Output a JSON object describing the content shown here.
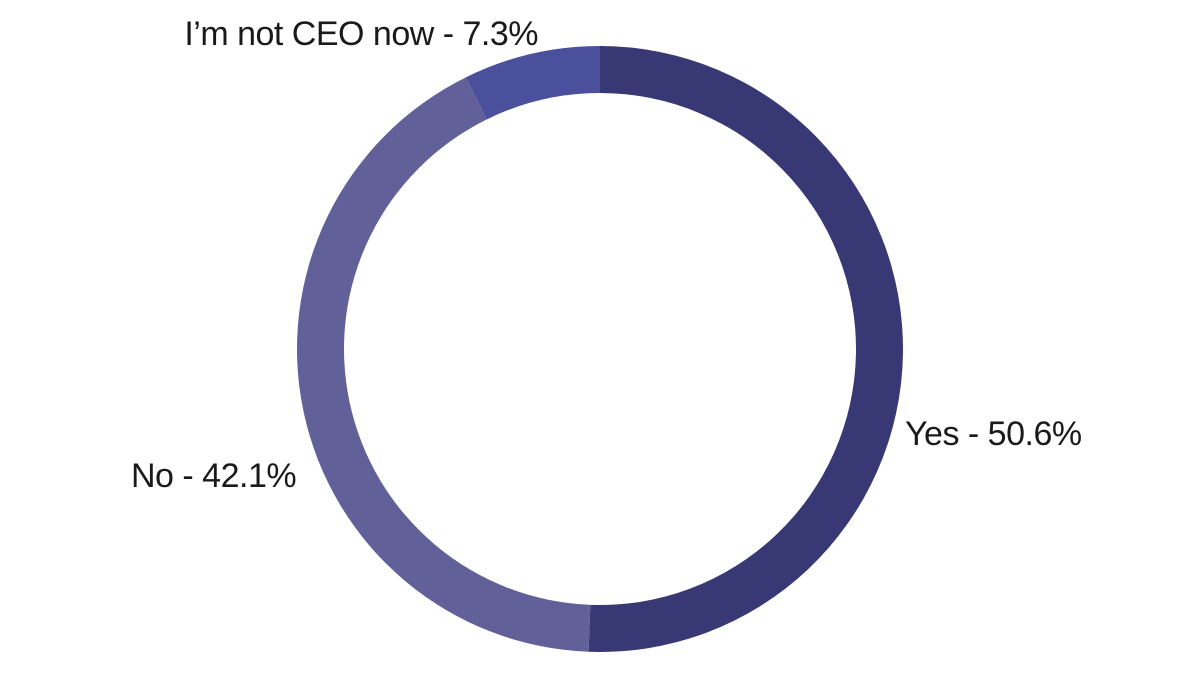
{
  "chart_data": {
    "type": "pie",
    "donut": true,
    "direction": "clockwise",
    "start_angle_deg": 0,
    "slices": [
      {
        "label": "Yes",
        "value": 50.6,
        "display": "Yes - 50.6%",
        "color": "#383874"
      },
      {
        "label": "No",
        "value": 42.1,
        "display": "No - 42.1%",
        "color": "#626098"
      },
      {
        "label": "I’m not CEO now",
        "value": 7.3,
        "display": "I’m not CEO now - 7.3%",
        "color": "#4a509c"
      }
    ],
    "legend": "none"
  }
}
